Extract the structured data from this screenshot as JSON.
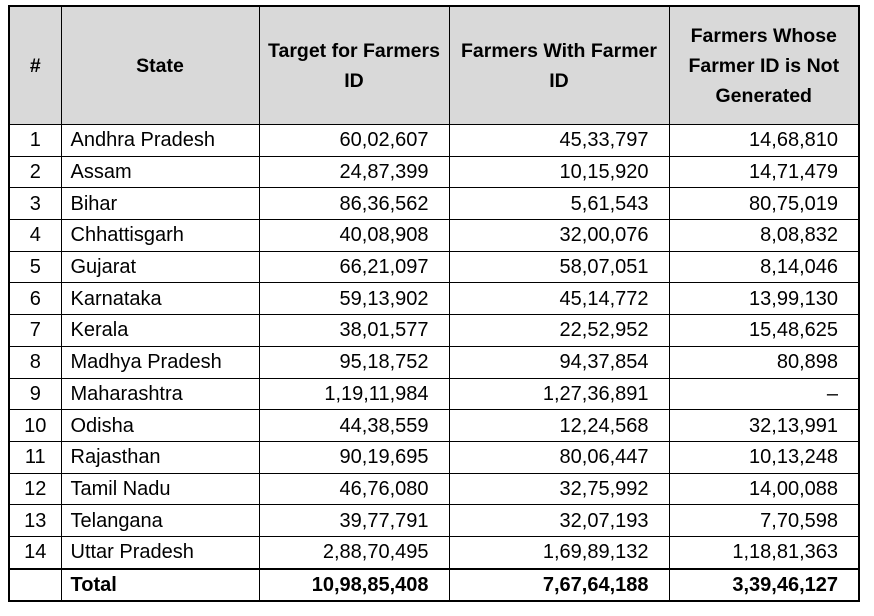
{
  "table": {
    "headers": [
      "#",
      "State",
      "Target for Farmers ID",
      "Farmers With Farmer ID",
      "Farmers Whose Farmer ID is Not Generated"
    ],
    "rows": [
      [
        "1",
        "Andhra Pradesh",
        "60,02,607",
        "45,33,797",
        "14,68,810"
      ],
      [
        "2",
        "Assam",
        "24,87,399",
        "10,15,920",
        "14,71,479"
      ],
      [
        "3",
        "Bihar",
        "86,36,562",
        "5,61,543",
        "80,75,019"
      ],
      [
        "4",
        "Chhattisgarh",
        "40,08,908",
        "32,00,076",
        "8,08,832"
      ],
      [
        "5",
        "Gujarat",
        "66,21,097",
        "58,07,051",
        "8,14,046"
      ],
      [
        "6",
        "Karnataka",
        "59,13,902",
        "45,14,772",
        "13,99,130"
      ],
      [
        "7",
        "Kerala",
        "38,01,577",
        "22,52,952",
        "15,48,625"
      ],
      [
        "8",
        "Madhya Pradesh",
        "95,18,752",
        "94,37,854",
        "80,898"
      ],
      [
        "9",
        "Maharashtra",
        "1,19,11,984",
        "1,27,36,891",
        "–"
      ],
      [
        "10",
        "Odisha",
        "44,38,559",
        "12,24,568",
        "32,13,991"
      ],
      [
        "11",
        "Rajasthan",
        "90,19,695",
        "80,06,447",
        "10,13,248"
      ],
      [
        "12",
        "Tamil Nadu",
        "46,76,080",
        "32,75,992",
        "14,00,088"
      ],
      [
        "13",
        "Telangana",
        "39,77,791",
        "32,07,193",
        "7,70,598"
      ],
      [
        "14",
        "Uttar Pradesh",
        "2,88,70,495",
        "1,69,89,132",
        "1,18,81,363"
      ]
    ],
    "total": {
      "label": "Total",
      "values": [
        "10,98,85,408",
        "7,67,64,188",
        "3,39,46,127"
      ]
    }
  }
}
